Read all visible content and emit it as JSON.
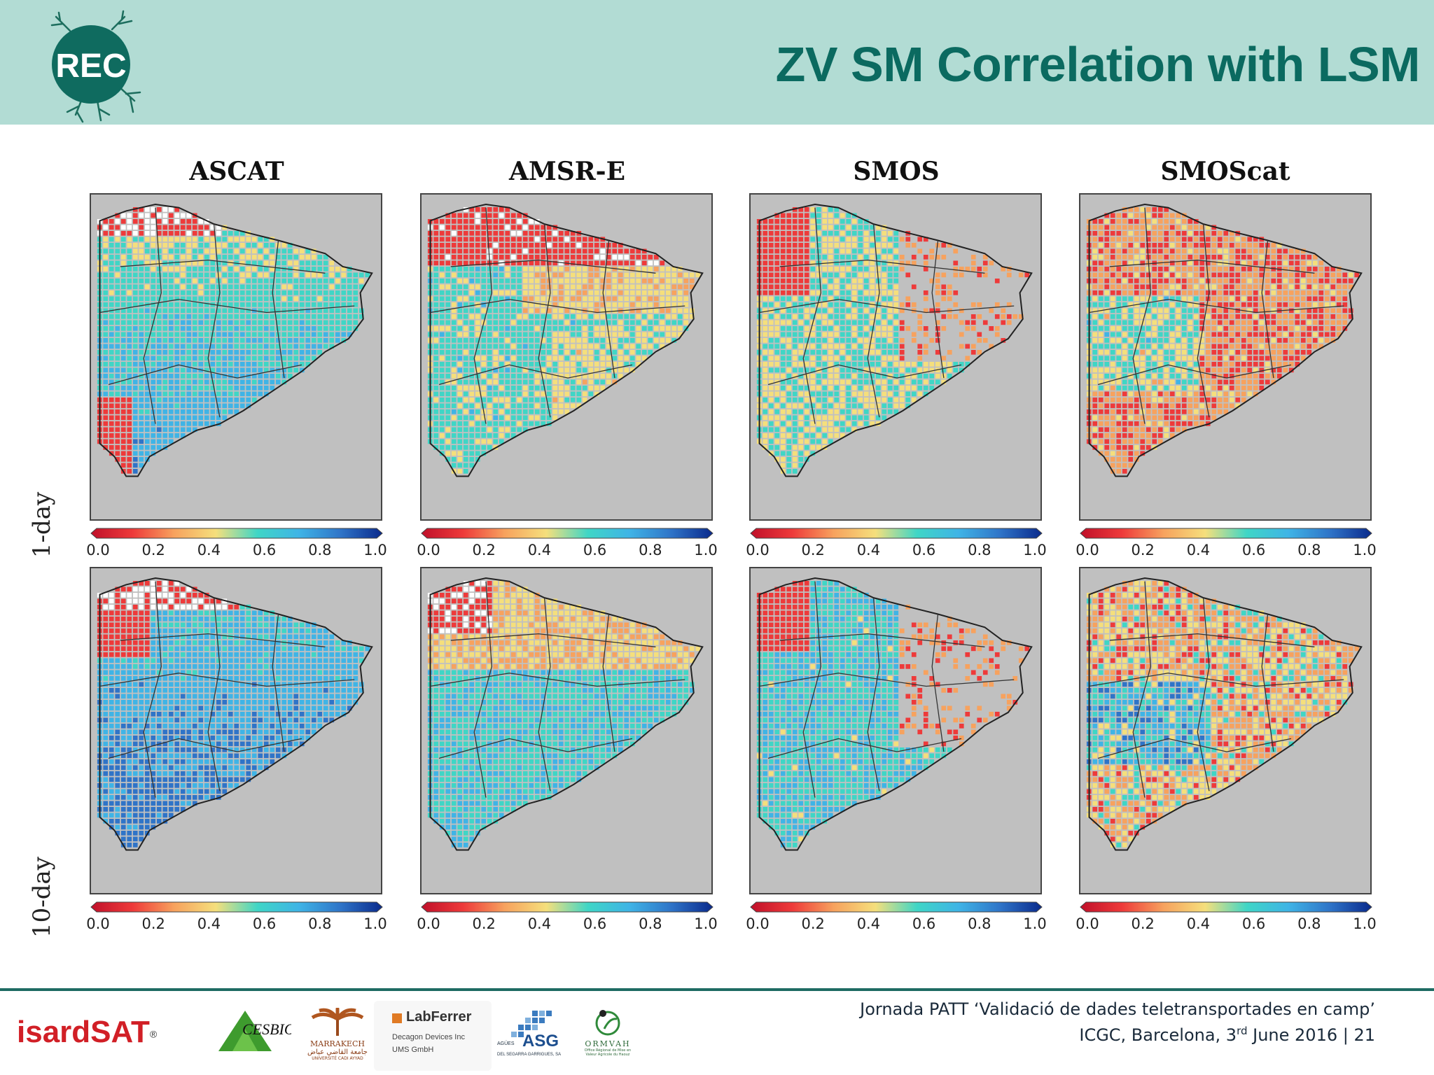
{
  "header": {
    "logo_text": "REC",
    "title": "ZV SM Correlation with LSM"
  },
  "figure": {
    "columns": [
      "ASCAT",
      "AMSR-E",
      "SMOS",
      "SMOScat"
    ],
    "rows": [
      "1-day",
      "10-day"
    ],
    "colorbar": {
      "ticks": [
        "0.0",
        "0.2",
        "0.4",
        "0.6",
        "0.8",
        "1.0"
      ],
      "range": [
        0.0,
        1.0
      ],
      "colors": [
        "#c0102a",
        "#ee3a3a",
        "#f7a25e",
        "#f5df7c",
        "#3fd6c6",
        "#3fb4e6",
        "#2f74c8",
        "#0a2a8c"
      ]
    },
    "map_background": "#c0c0c0"
  },
  "footer": {
    "line1": "Jornada PATT ‘Validació de dades teletransportades en camp’",
    "line2_prefix": "ICGC, Barcelona, 3",
    "line2_sup": "rd",
    "line2_suffix": " June 2016 | 21",
    "logos": {
      "isardsat": "isardSAT",
      "isardsat_mark": "®",
      "cesbio": "CESBIO",
      "marrakech": "MARRAKECH",
      "marrakech_sub": "جامعة القاضي عياض",
      "marrakech_sub2": "UNIVERSITÉ CADI AYYAD",
      "labferrer": "LabFerrer",
      "labferrer_sub1": "Decagon Devices Inc",
      "labferrer_sub2": "UMS GmbH",
      "asg": "ASG",
      "asg_left": "AGÜES",
      "asg_sub": "DEL SEGARRA GARRIGUES, SA",
      "ormvah": "ORMVAH",
      "ormvah_sub": "Office Régional de Mise en Valeur Agricole du Haouz"
    }
  }
}
